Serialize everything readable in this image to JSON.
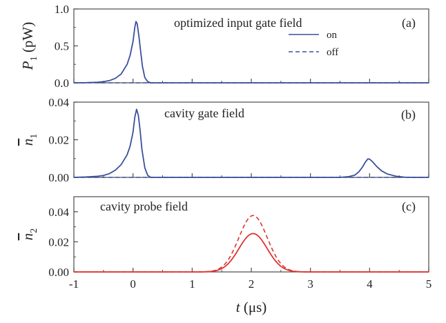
{
  "chart_data": [
    {
      "type": "line",
      "panel_label": "(a)",
      "annotation": "optimized input gate field",
      "ylabel": {
        "symbol": "P",
        "sub": "1",
        "unit": "(pW)"
      },
      "xlim": [
        -1,
        5
      ],
      "ylim": [
        0,
        1.0
      ],
      "yticks": [
        {
          "v": 0.0,
          "label": "0.0"
        },
        {
          "v": 0.5,
          "label": "0.5"
        },
        {
          "v": 1.0,
          "label": "1.0"
        }
      ],
      "legend": {
        "position": "top-right",
        "entries": [
          {
            "name": "on",
            "style": "solid"
          },
          {
            "name": "off",
            "style": "dashed"
          }
        ]
      },
      "series": [
        {
          "name": "on",
          "color": "#3a4f9c",
          "style": "solid",
          "points": [
            [
              -1,
              0
            ],
            [
              -0.8,
              0.002
            ],
            [
              -0.6,
              0.008
            ],
            [
              -0.5,
              0.015
            ],
            [
              -0.4,
              0.03
            ],
            [
              -0.3,
              0.06
            ],
            [
              -0.2,
              0.12
            ],
            [
              -0.1,
              0.25
            ],
            [
              -0.05,
              0.37
            ],
            [
              0,
              0.56
            ],
            [
              0.03,
              0.75
            ],
            [
              0.05,
              0.83
            ],
            [
              0.07,
              0.8
            ],
            [
              0.1,
              0.63
            ],
            [
              0.13,
              0.42
            ],
            [
              0.16,
              0.22
            ],
            [
              0.2,
              0.07
            ],
            [
              0.25,
              0.015
            ],
            [
              0.3,
              0
            ],
            [
              5,
              0
            ]
          ]
        },
        {
          "name": "off",
          "color": "#3a4f9c",
          "style": "dashed",
          "points": [
            [
              -1,
              0
            ],
            [
              5,
              0
            ]
          ]
        }
      ]
    },
    {
      "type": "line",
      "panel_label": "(b)",
      "annotation": "cavity gate field",
      "ylabel": {
        "symbol": "n",
        "sub": "1",
        "bar": true
      },
      "xlim": [
        -1,
        5
      ],
      "ylim": [
        0,
        0.04
      ],
      "yticks": [
        {
          "v": 0.0,
          "label": "0.00"
        },
        {
          "v": 0.02,
          "label": "0.02"
        },
        {
          "v": 0.04,
          "label": "0.04"
        }
      ],
      "series": [
        {
          "name": "on",
          "color": "#3a4f9c",
          "style": "solid",
          "points": [
            [
              -1,
              0
            ],
            [
              -0.8,
              0.0002
            ],
            [
              -0.6,
              0.0006
            ],
            [
              -0.5,
              0.001
            ],
            [
              -0.4,
              0.002
            ],
            [
              -0.3,
              0.0038
            ],
            [
              -0.2,
              0.0068
            ],
            [
              -0.1,
              0.012
            ],
            [
              -0.05,
              0.0165
            ],
            [
              0,
              0.024
            ],
            [
              0.03,
              0.032
            ],
            [
              0.06,
              0.0362
            ],
            [
              0.09,
              0.033
            ],
            [
              0.12,
              0.025
            ],
            [
              0.15,
              0.015
            ],
            [
              0.2,
              0.005
            ],
            [
              0.25,
              0.001
            ],
            [
              0.3,
              0
            ],
            [
              3.5,
              0
            ],
            [
              3.65,
              0.0004
            ],
            [
              3.75,
              0.0012
            ],
            [
              3.82,
              0.003
            ],
            [
              3.88,
              0.0055
            ],
            [
              3.93,
              0.0082
            ],
            [
              3.97,
              0.0098
            ],
            [
              4.0,
              0.0097
            ],
            [
              4.05,
              0.0083
            ],
            [
              4.12,
              0.0058
            ],
            [
              4.2,
              0.0035
            ],
            [
              4.3,
              0.0018
            ],
            [
              4.45,
              0.0006
            ],
            [
              4.6,
              0.0001
            ],
            [
              4.75,
              0
            ],
            [
              5,
              0
            ]
          ]
        },
        {
          "name": "off",
          "color": "#3a4f9c",
          "style": "dashed",
          "points": [
            [
              -1,
              0
            ],
            [
              5,
              0
            ]
          ]
        }
      ]
    },
    {
      "type": "line",
      "panel_label": "(c)",
      "annotation": "cavity probe field",
      "ylabel": {
        "symbol": "n",
        "sub": "2",
        "bar": true
      },
      "xlabel": {
        "symbol": "t",
        "unit": "(μs)"
      },
      "xlim": [
        -1,
        5
      ],
      "ylim": [
        0,
        0.05
      ],
      "yticks": [
        {
          "v": 0.0,
          "label": "0.00"
        },
        {
          "v": 0.02,
          "label": "0.02"
        },
        {
          "v": 0.04,
          "label": "0.04"
        }
      ],
      "xticks": [
        -1,
        0,
        1,
        2,
        3,
        4,
        5
      ],
      "series": [
        {
          "name": "on",
          "color": "#e03030",
          "style": "solid",
          "gaussian": {
            "center": 2.03,
            "amplitude": 0.0255,
            "sigma": 0.24
          }
        },
        {
          "name": "off",
          "color": "#e03030",
          "style": "dashed",
          "gaussian": {
            "center": 2.03,
            "amplitude": 0.0375,
            "sigma": 0.24
          }
        }
      ]
    }
  ]
}
